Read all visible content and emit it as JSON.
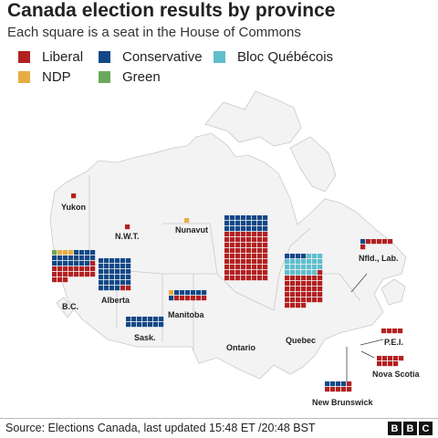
{
  "header": {
    "title": "Canada election results by province",
    "subtitle": "Each square is a seat in the House of Commons"
  },
  "legend": [
    {
      "key": "liberal",
      "label": "Liberal",
      "color": "#b32020"
    },
    {
      "key": "conservative",
      "label": "Conservative",
      "color": "#124887"
    },
    {
      "key": "bloc",
      "label": "Bloc Québécois",
      "color": "#5fbfcc"
    },
    {
      "key": "ndp",
      "label": "NDP",
      "color": "#e8ad42"
    },
    {
      "key": "green",
      "label": "Green",
      "color": "#6aa95c"
    }
  ],
  "regions": [
    {
      "id": "yukon",
      "label": "Yukon",
      "seats": {
        "liberal": 1
      }
    },
    {
      "id": "nwt",
      "label": "N.W.T.",
      "seats": {
        "liberal": 1
      }
    },
    {
      "id": "nunavut",
      "label": "Nunavut",
      "seats": {
        "ndp": 1
      }
    },
    {
      "id": "bc",
      "label": "B.C.",
      "seats": {
        "green": 1,
        "ndp": 3,
        "conservative": 19,
        "liberal": 20
      }
    },
    {
      "id": "alberta",
      "label": "Alberta",
      "seats": {
        "conservative": 34,
        "liberal": 2
      }
    },
    {
      "id": "sask",
      "label": "Sask.",
      "seats": {
        "conservative": 14
      }
    },
    {
      "id": "manitoba",
      "label": "Manitoba",
      "seats": {
        "ndp": 1,
        "liberal": 6,
        "conservative": 7
      }
    },
    {
      "id": "ontario",
      "label": "Ontario",
      "seats": {
        "conservative": 24,
        "liberal": 72
      }
    },
    {
      "id": "quebec",
      "label": "Quebec",
      "seats": {
        "conservative": 4,
        "bloc": 23,
        "liberal": 40
      }
    },
    {
      "id": "nfld",
      "label": "Nfld., Lab.",
      "seats": {
        "conservative": 1,
        "liberal": 6
      }
    },
    {
      "id": "pei",
      "label": "P.E.I.",
      "seats": {
        "liberal": 4
      }
    },
    {
      "id": "ns",
      "label": "Nova Scotia",
      "seats": {
        "liberal": 9
      }
    },
    {
      "id": "nb",
      "label": "New Brunswick",
      "seats": {
        "conservative": 4,
        "liberal": 6
      }
    }
  ],
  "footer": {
    "source": "Source: Elections Canada, last updated 15:48 ET /20:48 BST",
    "logo": [
      "B",
      "B",
      "C"
    ]
  }
}
